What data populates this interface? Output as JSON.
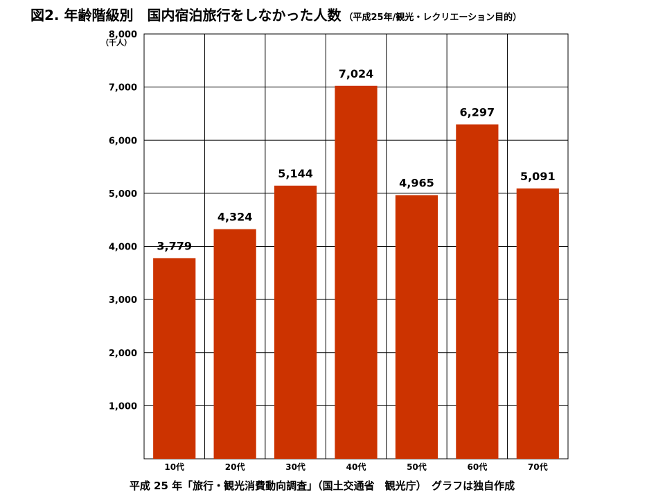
{
  "title": {
    "main": "図2.  年齢階級別　国内宿泊旅行をしなかった人数",
    "sub": "（平成25年/観光・レクリエーション目的）"
  },
  "footer": {
    "source": "平成 25 年「旅行・観光消費動向調査」（国土交通省　観光庁）　グラフは独自作成"
  },
  "chart_data": {
    "type": "bar",
    "categories": [
      "10代",
      "20代",
      "30代",
      "40代",
      "50代",
      "60代",
      "70代"
    ],
    "values": [
      3779,
      4324,
      5144,
      7024,
      4965,
      6297,
      5091
    ],
    "data_labels": [
      "3,779",
      "4,324",
      "5,144",
      "7,024",
      "4,965",
      "6,297",
      "5,091"
    ],
    "ylim": [
      0,
      8000
    ],
    "yticks": [
      1000,
      2000,
      3000,
      4000,
      5000,
      6000,
      7000,
      8000
    ],
    "ytick_labels": [
      "1,000",
      "2,000",
      "3,000",
      "4,000",
      "5,000",
      "6,000",
      "7,000",
      "8,000"
    ],
    "yunit": "（千人）",
    "grid": true,
    "bar_color": "#cc3300"
  }
}
